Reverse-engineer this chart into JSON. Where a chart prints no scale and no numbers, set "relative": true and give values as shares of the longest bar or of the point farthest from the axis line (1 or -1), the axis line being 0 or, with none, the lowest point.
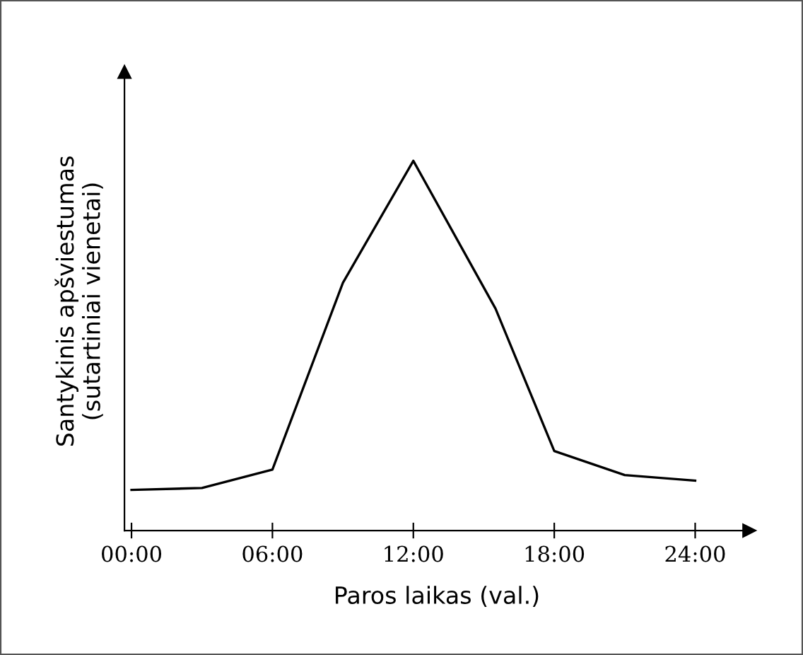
{
  "chart_data": {
    "type": "line",
    "xlabel": "Paros laikas (val.)",
    "ylabel": "Santykinis apšviestumas\n(sutartiniai vienetai)",
    "x": [
      0,
      3,
      6,
      9,
      12,
      15.5,
      18,
      21,
      24
    ],
    "series": [
      {
        "color": "#000000",
        "values": [
          0.11,
          0.115,
          0.165,
          0.67,
          1,
          0.6,
          0.215,
          0.15,
          0.135
        ]
      }
    ],
    "relative": true,
    "xlim": [
      -0.3,
      26.3
    ],
    "xticks": [
      {
        "value": 0,
        "label": "00:00"
      },
      {
        "value": 6,
        "label": "06:00"
      },
      {
        "value": 12,
        "label": "12:00"
      },
      {
        "value": 18,
        "label": "18:00"
      },
      {
        "value": 24,
        "label": "24:00"
      }
    ],
    "grid": false,
    "legend": false,
    "marker": "none",
    "line_style": "solid"
  }
}
